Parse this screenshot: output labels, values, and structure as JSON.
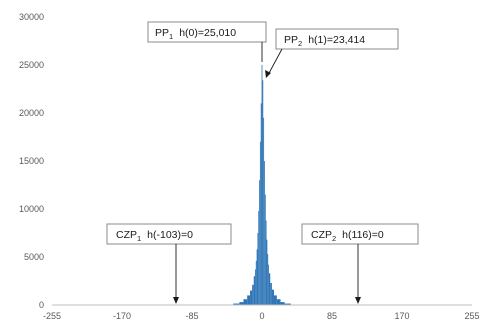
{
  "chart_data": {
    "type": "bar",
    "title": "",
    "xlabel": "",
    "ylabel": "",
    "xlim": [
      -255,
      255
    ],
    "ylim": [
      0,
      30000
    ],
    "grid": false,
    "x_ticks": [
      "-255",
      "-170",
      "-85",
      "0",
      "85",
      "170",
      "255"
    ],
    "y_ticks": [
      "0",
      "5000",
      "10000",
      "15000",
      "20000",
      "25000",
      "30000"
    ],
    "color": "#2e75b6",
    "histogram": {
      "x": [
        -40,
        -30,
        -25,
        -20,
        -16,
        -13,
        -11,
        -9,
        -8,
        -7,
        -6,
        -5,
        -4,
        -3,
        -2,
        -1,
        0,
        1,
        2,
        3,
        4,
        5,
        6,
        7,
        8,
        9,
        11,
        13,
        16,
        20,
        25,
        30,
        40
      ],
      "values": [
        50,
        150,
        300,
        600,
        1000,
        1500,
        2100,
        3000,
        3700,
        4600,
        5800,
        7500,
        9800,
        13000,
        17000,
        21000,
        25010,
        23414,
        19500,
        15000,
        11500,
        8800,
        6800,
        5300,
        4200,
        3300,
        2300,
        1600,
        1000,
        600,
        300,
        150,
        50
      ]
    },
    "annotations": [
      {
        "id": "pp1",
        "prefix": "PP",
        "sub": "1",
        "text": "h(0)=25,010",
        "x": 0,
        "y": 25010
      },
      {
        "id": "pp2",
        "prefix": "PP",
        "sub": "2",
        "text": "h(1)=23,414",
        "x": 1,
        "y": 23414
      },
      {
        "id": "czp1",
        "prefix": "CZP",
        "sub": "1",
        "text": "h(-103)=0",
        "x": -103,
        "y": 0
      },
      {
        "id": "czp2",
        "prefix": "CZP",
        "sub": "2",
        "text": "h(116)=0",
        "x": 116,
        "y": 0
      }
    ]
  }
}
